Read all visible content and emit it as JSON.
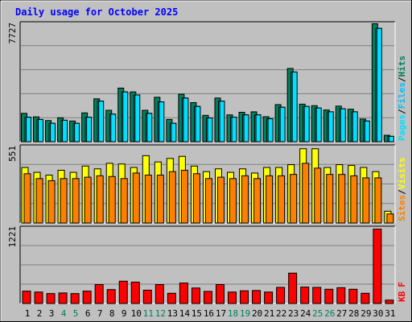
{
  "title": "Daily usage for October 2025",
  "colors": {
    "background": "#c0c0c0",
    "title": "#0000ff",
    "hits": "#00805c",
    "files": "#00c0ff",
    "pages": "#00e0ff",
    "visits": "#ffff00",
    "sites": "#ff8000",
    "kbytes": "#ff0000",
    "weekday_label": "#000000",
    "weekend_label": "#00805c"
  },
  "chart_data": {
    "type": "bar",
    "categories": [
      "1",
      "2",
      "3",
      "4",
      "5",
      "6",
      "7",
      "8",
      "9",
      "10",
      "11",
      "12",
      "13",
      "14",
      "15",
      "16",
      "17",
      "18",
      "19",
      "20",
      "21",
      "22",
      "23",
      "24",
      "25",
      "26",
      "27",
      "28",
      "29",
      "30",
      "31"
    ],
    "weekend_days": [
      "4",
      "5",
      "11",
      "12",
      "18",
      "19",
      "25",
      "26"
    ],
    "panels": [
      {
        "id": "hits-files-pages",
        "ymax_label": "7727",
        "ylim": [
          0,
          7727
        ],
        "legend": [
          "Pages",
          "/",
          "Files",
          "/",
          "Hits"
        ],
        "series": [
          {
            "name": "Hits",
            "values": [
              1850,
              1620,
              1380,
              1560,
              1350,
              1880,
              2800,
              2050,
              3500,
              3250,
              2050,
              2900,
              1450,
              3100,
              2550,
              1720,
              2850,
              1750,
              1920,
              1950,
              1630,
              2420,
              4780,
              2450,
              2350,
              2070,
              2320,
              2120,
              1480,
              7700,
              420
            ]
          },
          {
            "name": "Files",
            "values": [
              1600,
              1450,
              1200,
              1400,
              1200,
              1600,
              2650,
              1800,
              3250,
              3050,
              1850,
              2600,
              1200,
              2850,
              2300,
              1550,
              2650,
              1600,
              1750,
              1750,
              1500,
              2250,
              4550,
              2300,
              2200,
              1950,
              2150,
              1950,
              1350,
              7400,
              350
            ]
          },
          {
            "name": "Pages",
            "values": [
              1600,
              1450,
              1200,
              1400,
              1200,
              1600,
              2650,
              1800,
              3250,
              3050,
              1850,
              2600,
              1200,
              2850,
              2300,
              1550,
              2650,
              1600,
              1750,
              1750,
              1500,
              2250,
              4550,
              2300,
              2200,
              1950,
              2150,
              1950,
              1350,
              7400,
              350
            ]
          }
        ]
      },
      {
        "id": "visits-sites",
        "ymax_label": "551",
        "ylim": [
          0,
          551
        ],
        "legend": [
          "Sites",
          "/",
          "Visits"
        ],
        "series": [
          {
            "name": "Visits",
            "values": [
              400,
              365,
              345,
              380,
              365,
              410,
              390,
              430,
              425,
              400,
              485,
              440,
              465,
              480,
              410,
              370,
              390,
              365,
              390,
              360,
              400,
              400,
              420,
              535,
              535,
              400,
              420,
              415,
              400,
              370,
              85
            ]
          },
          {
            "name": "Sites",
            "values": [
              355,
              320,
              305,
              320,
              320,
              330,
              340,
              335,
              320,
              360,
              345,
              345,
              370,
              380,
              355,
              320,
              330,
              320,
              340,
              320,
              340,
              340,
              350,
              430,
              395,
              350,
              350,
              340,
              325,
              325,
              65
            ]
          }
        ]
      },
      {
        "id": "kbytes",
        "ymax_label": "1221",
        "ylim": [
          0,
          1221
        ],
        "legend": [
          "KB",
          "F"
        ],
        "series": [
          {
            "name": "KB",
            "values": [
              200,
              185,
              160,
              170,
              160,
              200,
              305,
              225,
              360,
              345,
              215,
              305,
              165,
              330,
              250,
              195,
              305,
              185,
              205,
              210,
              185,
              260,
              490,
              265,
              260,
              230,
              255,
              230,
              165,
              1200,
              55
            ]
          }
        ]
      }
    ]
  }
}
